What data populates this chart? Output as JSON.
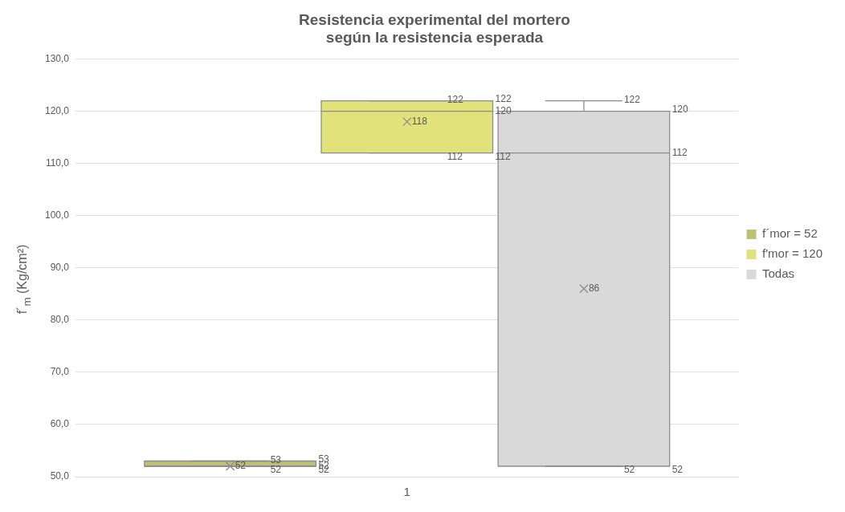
{
  "chart_data": {
    "type": "box",
    "title": "Resistencia experimental del mortero\nsegún la resistencia esperada",
    "ylabel": "f´$_{m}$ (Kg/cm²)",
    "categories": [
      "1"
    ],
    "series": [
      {
        "name": "f´mor = 52",
        "color": "#bfbf75",
        "boxes": [
          {
            "low": 52,
            "q1": 52,
            "median": 52,
            "q3": 53,
            "high": 53,
            "mean": 52
          }
        ]
      },
      {
        "name": "f'mor = 120",
        "color": "#e2e27a",
        "boxes": [
          {
            "low": 112,
            "q1": 112,
            "median": 120,
            "q3": 122,
            "high": 122,
            "mean": 118
          }
        ]
      },
      {
        "name": "Todas",
        "color": "#d9d9d9",
        "boxes": [
          {
            "low": 52,
            "q1": 52,
            "median": 112,
            "q3": 120,
            "high": 122,
            "mean": 86
          }
        ]
      }
    ],
    "annotations": [
      "53",
      "53",
      "52",
      "52",
      "52",
      "52",
      "122",
      "122",
      "120",
      "112",
      "112",
      "118",
      "122",
      "120",
      "112",
      "52",
      "52",
      "86"
    ],
    "ylim": [
      50,
      130
    ],
    "yticks": [
      {
        "value": 50,
        "label": "50,0"
      },
      {
        "value": 60,
        "label": "60,0"
      },
      {
        "value": 70,
        "label": "70,0"
      },
      {
        "value": 80,
        "label": "80,0"
      },
      {
        "value": 90,
        "label": "90,0"
      },
      {
        "value": 100,
        "label": "100,0"
      },
      {
        "value": 110,
        "label": "110,0"
      },
      {
        "value": 120,
        "label": "120,0"
      },
      {
        "value": 130,
        "label": "130,0"
      }
    ],
    "grid": "y",
    "legend": "right"
  }
}
